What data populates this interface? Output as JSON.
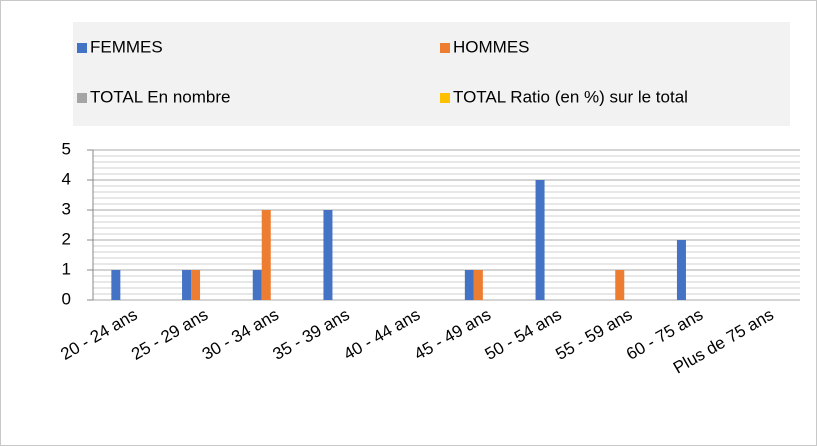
{
  "chart_data": {
    "type": "bar",
    "categories": [
      "20 - 24 ans",
      "25 - 29 ans",
      "30 - 34 ans",
      "35 - 39 ans",
      "40 - 44 ans",
      "45 - 49 ans",
      "50 - 54 ans",
      "55 - 59 ans",
      "60 - 75 ans",
      "Plus de 75 ans"
    ],
    "series": [
      {
        "name": "FEMMES",
        "color": "#4472c4",
        "values": [
          1,
          1,
          1,
          3,
          0,
          1,
          4,
          0,
          2,
          0
        ]
      },
      {
        "name": "HOMMES",
        "color": "#ed7d31",
        "values": [
          0,
          1,
          3,
          0,
          0,
          1,
          0,
          1,
          0,
          0
        ]
      },
      {
        "name": "TOTAL  En nombre",
        "color": "#a5a5a5",
        "values": [
          null,
          null,
          null,
          null,
          null,
          null,
          null,
          null,
          null,
          null
        ]
      },
      {
        "name": "TOTAL  Ratio (en %) sur le total",
        "color": "#ffc000",
        "values": [
          null,
          null,
          null,
          null,
          null,
          null,
          null,
          null,
          null,
          null
        ]
      }
    ],
    "ylim": [
      0,
      5
    ],
    "yticks": [
      0,
      1,
      2,
      3,
      4,
      5
    ],
    "grid": true,
    "minor_grid_per_major": 5,
    "legend": "top"
  }
}
